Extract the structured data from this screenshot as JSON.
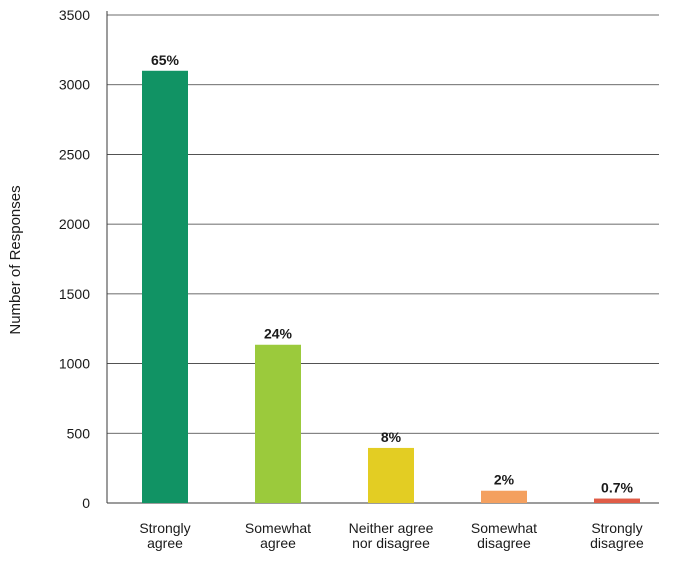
{
  "chart_data": {
    "type": "bar",
    "title": "",
    "xlabel": "",
    "ylabel": "Number of Responses",
    "ylim": [
      0,
      3500
    ],
    "yticks": [
      0,
      500,
      1000,
      1500,
      2000,
      2500,
      3000,
      3500
    ],
    "grid": "horizontal",
    "legend": "none",
    "categories": [
      [
        "Strongly",
        "agree"
      ],
      [
        "Somewhat",
        "agree"
      ],
      [
        "Neither agree",
        "nor disagree"
      ],
      [
        "Somewhat",
        "disagree"
      ],
      [
        "Strongly",
        "disagree"
      ]
    ],
    "values": [
      3100,
      1135,
      395,
      88,
      32
    ],
    "data_labels": [
      "65%",
      "24%",
      "8%",
      "2%",
      "0.7%"
    ],
    "colors": [
      "#119364",
      "#9bca3c",
      "#e3cd23",
      "#f4a05f",
      "#e05c47"
    ]
  }
}
